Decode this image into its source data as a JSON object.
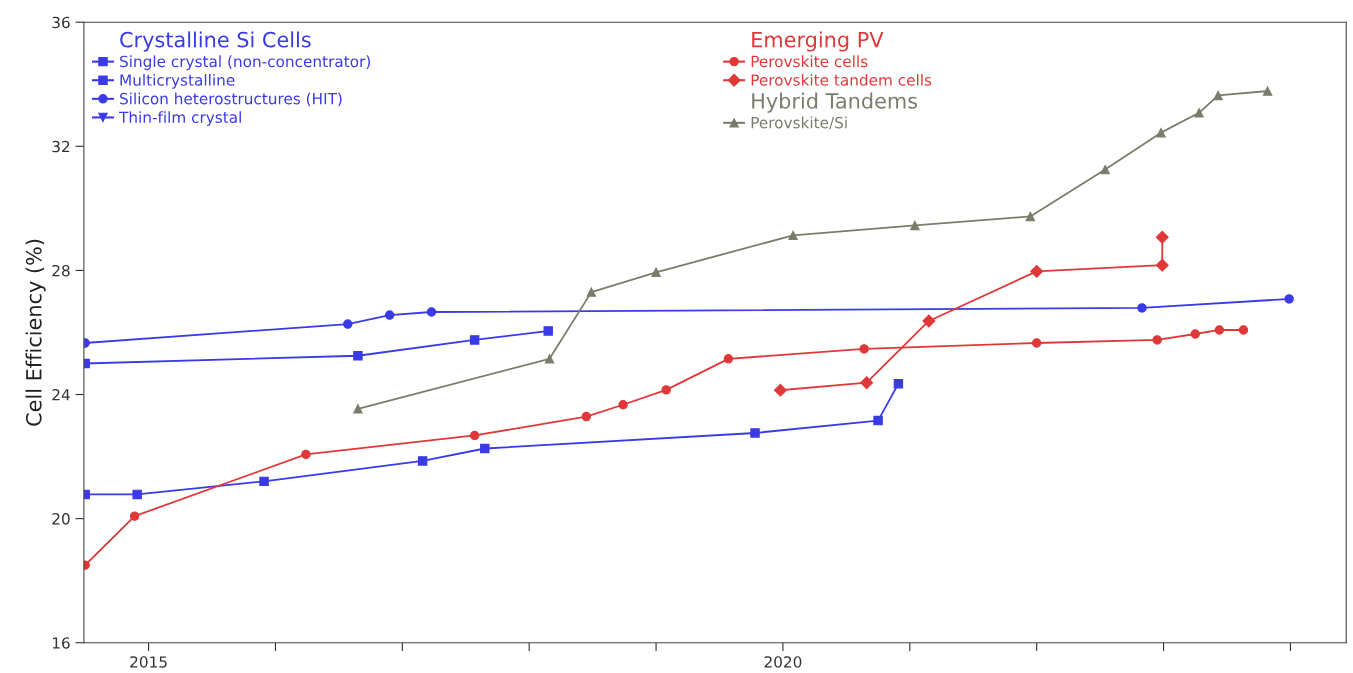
{
  "chart_data": {
    "type": "line",
    "ylabel": "Cell Efficiency (%)",
    "annotations": [
      "Crystalline Si Cells",
      "Emerging PV",
      "Hybrid Tandems"
    ],
    "xlim": [
      2014.49,
      2024.44
    ],
    "xticks": [
      2015,
      {
        "value": 2016,
        "label": null
      },
      {
        "value": 2017,
        "label": null
      },
      {
        "value": 2018,
        "label": null
      },
      {
        "value": 2019,
        "label": null
      },
      2020,
      {
        "value": 2021,
        "label": null
      },
      {
        "value": 2022,
        "label": null
      },
      {
        "value": 2023,
        "label": null
      },
      {
        "value": 2024,
        "label": null
      }
    ],
    "ylim": [
      16,
      36
    ],
    "yticks": [
      16,
      20,
      24,
      28,
      32,
      36
    ],
    "grid": false,
    "legend": "top left",
    "line_style": "solid",
    "series": [
      {
        "name": "Single crystal (non-concentrator)",
        "color": "#3a3ae6",
        "marker": "square",
        "x": [
          2014.5,
          2016.65,
          2017.57,
          2018.15
        ],
        "values": [
          25.0,
          25.25,
          25.76,
          26.05
        ]
      },
      {
        "name": "Multicrystalline",
        "color": "#3a3ae6",
        "marker": "square",
        "x": [
          2014.5,
          2014.91,
          2015.91,
          2017.16,
          2017.65,
          2019.78,
          2020.75,
          2020.91
        ],
        "values": [
          20.78,
          20.78,
          21.2,
          21.86,
          22.26,
          22.76,
          23.16,
          24.35
        ]
      },
      {
        "name": "Silicon heterostructures (HIT)",
        "color": "#3a3ae6",
        "marker": "circle",
        "x": [
          2014.5,
          2016.57,
          2016.9,
          2017.23,
          2022.83,
          2023.99
        ],
        "values": [
          25.66,
          26.27,
          26.56,
          26.66,
          26.79,
          27.08
        ]
      },
      {
        "name": "Thin-film crystal",
        "color": "#3a3ae6",
        "marker": "triangle_down"
      },
      {
        "name": "Perovskite cells",
        "color": "#e03838",
        "marker": "circle",
        "x": [
          2014.5,
          2014.89,
          2016.24,
          2017.57,
          2018.45,
          2018.74,
          2019.08,
          2019.57,
          2020.64,
          2022.0,
          2022.95,
          2023.25,
          2023.44,
          2023.63
        ],
        "values": [
          18.5,
          20.08,
          22.07,
          22.68,
          23.29,
          23.67,
          24.15,
          25.15,
          25.47,
          25.66,
          25.76,
          25.95,
          26.08,
          26.08
        ]
      },
      {
        "name": "Perovskite tandem cells",
        "color": "#e03838",
        "marker": "diamond",
        "x": [
          2019.98,
          2020.66,
          2021.15,
          2022.0,
          2022.99,
          2022.99
        ],
        "values": [
          24.14,
          24.38,
          26.37,
          27.97,
          28.17,
          29.07
        ]
      },
      {
        "name": "Perovskite/Si",
        "color": "#7c7c6c",
        "marker": "triangle",
        "x": [
          2016.65,
          2018.16,
          2018.49,
          2019.0,
          2020.08,
          2021.04,
          2021.95,
          2022.54,
          2022.98,
          2023.28,
          2023.43,
          2023.82
        ],
        "values": [
          23.54,
          25.15,
          27.3,
          27.94,
          29.13,
          29.45,
          29.74,
          31.25,
          32.44,
          33.08,
          33.64,
          33.78
        ]
      }
    ]
  }
}
